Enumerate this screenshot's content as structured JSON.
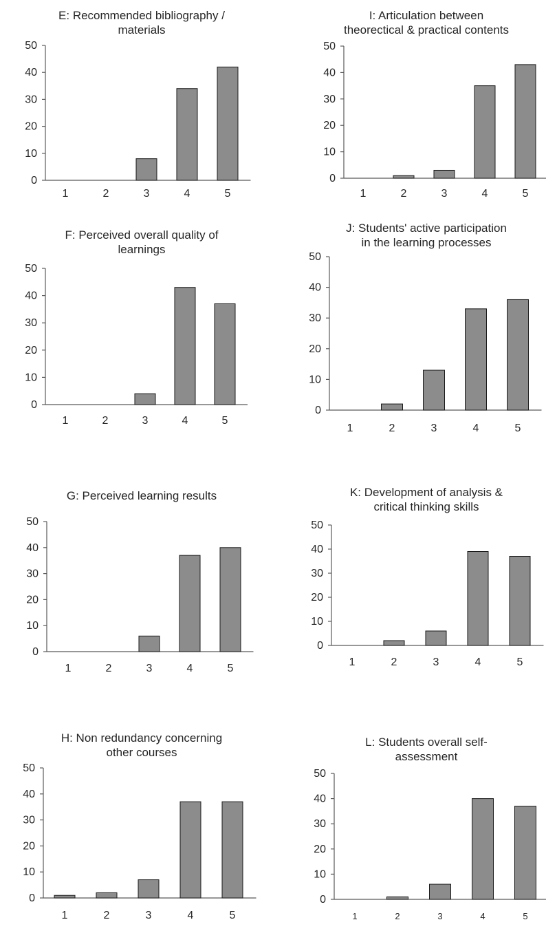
{
  "chart_data": [
    {
      "id": "E",
      "type": "bar",
      "title_lines": [
        "E: Recommended bibliography /",
        "materials"
      ],
      "categories": [
        "1",
        "2",
        "3",
        "4",
        "5"
      ],
      "values": [
        0,
        0,
        8,
        34,
        42
      ],
      "yticks": [
        "0",
        "10",
        "20",
        "30",
        "40",
        "50"
      ],
      "ylim": [
        0,
        50
      ],
      "bar_color": "#8c8c8c",
      "grid": false
    },
    {
      "id": "I",
      "type": "bar",
      "title_lines": [
        "I: Articulation between",
        "theorectical & practical contents"
      ],
      "categories": [
        "1",
        "2",
        "3",
        "4",
        "5"
      ],
      "values": [
        0,
        1,
        3,
        35,
        43
      ],
      "yticks": [
        "0",
        "10",
        "20",
        "30",
        "40",
        "50"
      ],
      "ylim": [
        0,
        50
      ],
      "bar_color": "#8c8c8c",
      "grid": false
    },
    {
      "id": "F",
      "type": "bar",
      "title_lines": [
        "F: Perceived overall quality of",
        "learnings"
      ],
      "categories": [
        "1",
        "2",
        "3",
        "4",
        "5"
      ],
      "values": [
        0,
        0,
        4,
        43,
        37
      ],
      "yticks": [
        "0",
        "10",
        "20",
        "30",
        "40",
        "50"
      ],
      "ylim": [
        0,
        50
      ],
      "bar_color": "#8c8c8c",
      "grid": false
    },
    {
      "id": "J",
      "type": "bar",
      "title_lines": [
        "J: Students' active participation",
        "in the learning processes"
      ],
      "categories": [
        "1",
        "2",
        "3",
        "4",
        "5"
      ],
      "values": [
        0,
        2,
        13,
        33,
        36
      ],
      "yticks": [
        "0",
        "10",
        "20",
        "30",
        "40",
        "50"
      ],
      "ylim": [
        0,
        50
      ],
      "bar_color": "#8c8c8c",
      "grid": false
    },
    {
      "id": "G",
      "type": "bar",
      "title_lines": [
        "G: Perceived learning results"
      ],
      "categories": [
        "1",
        "2",
        "3",
        "4",
        "5"
      ],
      "values": [
        0,
        0,
        6,
        37,
        40
      ],
      "yticks": [
        "0",
        "10",
        "20",
        "30",
        "40",
        "50"
      ],
      "ylim": [
        0,
        50
      ],
      "bar_color": "#8c8c8c",
      "grid": false
    },
    {
      "id": "K",
      "type": "bar",
      "title_lines": [
        "K: Development of analysis &",
        "critical thinking skills"
      ],
      "categories": [
        "1",
        "2",
        "3",
        "4",
        "5"
      ],
      "values": [
        0,
        2,
        6,
        39,
        37
      ],
      "yticks": [
        "0",
        "10",
        "20",
        "30",
        "40",
        "50"
      ],
      "ylim": [
        0,
        50
      ],
      "bar_color": "#8c8c8c",
      "grid": false
    },
    {
      "id": "H",
      "type": "bar",
      "title_lines": [
        "H: Non redundancy concerning",
        "other courses"
      ],
      "categories": [
        "1",
        "2",
        "3",
        "4",
        "5"
      ],
      "values": [
        1,
        2,
        7,
        37,
        37
      ],
      "yticks": [
        "0",
        "10",
        "20",
        "30",
        "40",
        "50"
      ],
      "ylim": [
        0,
        50
      ],
      "bar_color": "#8c8c8c",
      "grid": false
    },
    {
      "id": "L",
      "type": "bar",
      "title_lines": [
        "L: Students overall self-",
        "assessment"
      ],
      "categories": [
        "1",
        "2",
        "3",
        "4",
        "5"
      ],
      "values": [
        0,
        1,
        6,
        40,
        37
      ],
      "yticks": [
        "0",
        "10",
        "20",
        "30",
        "40",
        "50"
      ],
      "ylim": [
        0,
        50
      ],
      "bar_color": "#8c8c8c",
      "grid": false
    }
  ]
}
